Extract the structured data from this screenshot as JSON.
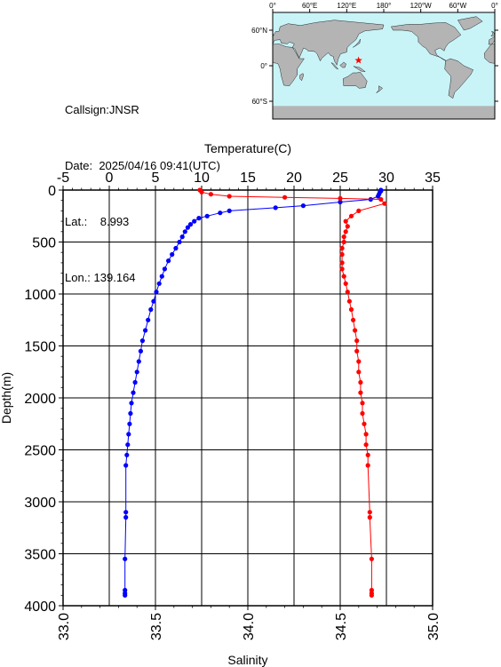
{
  "station": {
    "callsign_label": "Callsign:",
    "callsign": "JNSR",
    "date_label": "Date:",
    "date": "2025/04/16 09:41(UTC)",
    "lat_label": "Lat.:",
    "lat": "8.993",
    "lon_label": "Lon.:",
    "lon": "139.164"
  },
  "map": {
    "lon_ticks": [
      "0°",
      "60°E",
      "120°E",
      "180°",
      "120°W",
      "60°W",
      "0°"
    ],
    "lat_ticks": [
      "60°N",
      "0°",
      "60°S"
    ],
    "ocean_color": "#c8f4f8",
    "land_color": "#b4b4b4",
    "marker_color": "#ff0000",
    "marker": {
      "lon": 139.164,
      "lat": 8.993
    }
  },
  "chart_data": {
    "type": "line",
    "title": "",
    "ylabel": "Depth(m)",
    "ylim": [
      0,
      4000
    ],
    "yticks": [
      "0",
      "500",
      "1000",
      "1500",
      "2000",
      "2500",
      "3000",
      "3500",
      "4000"
    ],
    "y_inverted": true,
    "top_axis": {
      "label": "Temperature(C)",
      "range": [
        -5,
        35
      ],
      "ticks": [
        "-5",
        "0",
        "5",
        "10",
        "15",
        "20",
        "25",
        "30",
        "35"
      ]
    },
    "bottom_axis": {
      "label": "Salinity",
      "range": [
        33.0,
        35.0
      ],
      "ticks": [
        "33.0",
        "33.5",
        "34.0",
        "34.5",
        "35.0"
      ]
    },
    "grid": true,
    "series": [
      {
        "axis": "top",
        "color": "#0000ff",
        "points": [
          [
            29.4,
            0
          ],
          [
            29.4,
            10
          ],
          [
            29.3,
            20
          ],
          [
            29.2,
            40
          ],
          [
            29.1,
            60
          ],
          [
            28.3,
            90
          ],
          [
            25.0,
            115
          ],
          [
            21.0,
            150
          ],
          [
            18.0,
            170
          ],
          [
            13.0,
            200
          ],
          [
            12.0,
            220
          ],
          [
            10.6,
            250
          ],
          [
            9.7,
            270
          ],
          [
            9.2,
            300
          ],
          [
            8.8,
            330
          ],
          [
            8.5,
            360
          ],
          [
            8.2,
            400
          ],
          [
            7.9,
            450
          ],
          [
            7.6,
            500
          ],
          [
            7.2,
            560
          ],
          [
            6.8,
            620
          ],
          [
            6.4,
            680
          ],
          [
            6.0,
            760
          ],
          [
            5.7,
            830
          ],
          [
            5.4,
            900
          ],
          [
            5.1,
            980
          ],
          [
            4.8,
            1070
          ],
          [
            4.5,
            1150
          ],
          [
            4.2,
            1250
          ],
          [
            3.9,
            1350
          ],
          [
            3.6,
            1450
          ],
          [
            3.4,
            1550
          ],
          [
            3.2,
            1650
          ],
          [
            3.0,
            1750
          ],
          [
            2.8,
            1850
          ],
          [
            2.6,
            1950
          ],
          [
            2.4,
            2050
          ],
          [
            2.3,
            2150
          ],
          [
            2.2,
            2250
          ],
          [
            2.1,
            2350
          ],
          [
            2.0,
            2450
          ],
          [
            1.9,
            2550
          ],
          [
            1.8,
            2650
          ],
          [
            1.8,
            3100
          ],
          [
            1.8,
            3150
          ],
          [
            1.7,
            3550
          ],
          [
            1.7,
            3850
          ],
          [
            1.7,
            3880
          ],
          [
            1.7,
            3900
          ]
        ]
      },
      {
        "axis": "bottom",
        "color": "#ff0000",
        "points": [
          [
            33.74,
            0
          ],
          [
            33.75,
            20
          ],
          [
            33.8,
            40
          ],
          [
            33.9,
            60
          ],
          [
            34.2,
            70
          ],
          [
            34.5,
            80
          ],
          [
            34.72,
            90
          ],
          [
            34.74,
            130
          ],
          [
            34.6,
            200
          ],
          [
            34.56,
            250
          ],
          [
            34.53,
            300
          ],
          [
            34.54,
            350
          ],
          [
            34.53,
            400
          ],
          [
            34.52,
            450
          ],
          [
            34.52,
            500
          ],
          [
            34.51,
            560
          ],
          [
            34.51,
            620
          ],
          [
            34.51,
            700
          ],
          [
            34.51,
            760
          ],
          [
            34.52,
            830
          ],
          [
            34.53,
            900
          ],
          [
            34.54,
            980
          ],
          [
            34.55,
            1070
          ],
          [
            34.56,
            1150
          ],
          [
            34.57,
            1250
          ],
          [
            34.58,
            1350
          ],
          [
            34.59,
            1450
          ],
          [
            34.59,
            1550
          ],
          [
            34.6,
            1650
          ],
          [
            34.6,
            1750
          ],
          [
            34.61,
            1850
          ],
          [
            34.61,
            1950
          ],
          [
            34.62,
            2050
          ],
          [
            34.62,
            2150
          ],
          [
            34.63,
            2250
          ],
          [
            34.64,
            2350
          ],
          [
            34.64,
            2450
          ],
          [
            34.65,
            2550
          ],
          [
            34.65,
            2650
          ],
          [
            34.66,
            3100
          ],
          [
            34.66,
            3150
          ],
          [
            34.67,
            3550
          ],
          [
            34.67,
            3850
          ],
          [
            34.67,
            3880
          ],
          [
            34.67,
            3900
          ]
        ]
      }
    ]
  }
}
